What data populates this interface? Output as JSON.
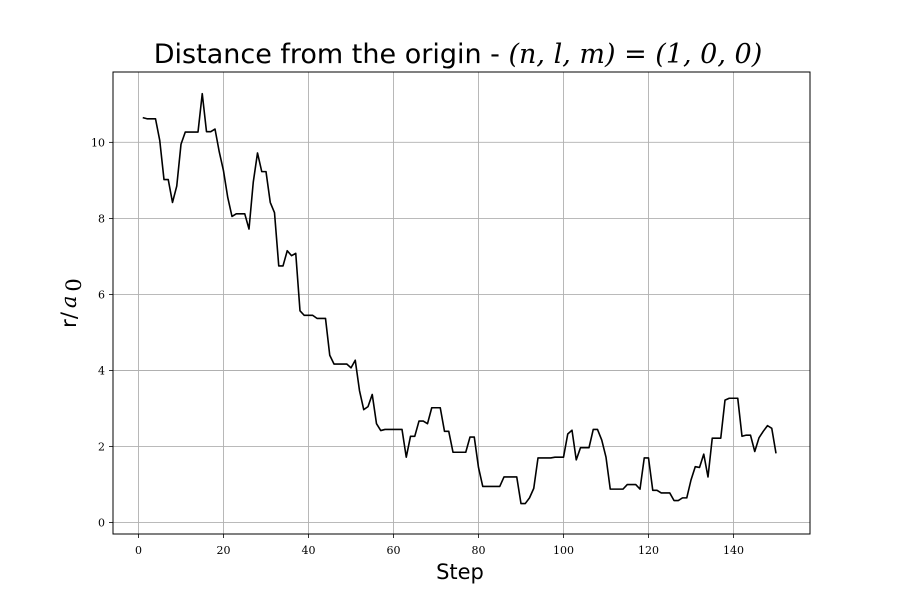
{
  "chart_data": {
    "type": "line",
    "title_text": "Distance from the origin - ",
    "title_math": "(n, l, m) = (1, 0, 0)",
    "xlabel": "Step",
    "ylabel_text": "r/",
    "ylabel_math": "a",
    "ylabel_subscript": "0",
    "xlim": [
      -6,
      158
    ],
    "ylim": [
      -0.3,
      11.85
    ],
    "xticks": [
      0,
      20,
      40,
      60,
      80,
      100,
      120,
      140
    ],
    "yticks": [
      0,
      2,
      4,
      6,
      8,
      10
    ],
    "xtick_labels": [
      "0",
      "20",
      "40",
      "60",
      "80",
      "100",
      "120",
      "140"
    ],
    "ytick_labels": [
      "0",
      "2",
      "4",
      "6",
      "8",
      "10"
    ],
    "grid": true,
    "line_color": "#000000",
    "series": [
      {
        "x": [
          1,
          2,
          3,
          4,
          5,
          6,
          7,
          8,
          9,
          10,
          11,
          12,
          13,
          14,
          15,
          16,
          17,
          18,
          19,
          20,
          21,
          22,
          23,
          24,
          25,
          26,
          27,
          28,
          29,
          30,
          31,
          32,
          33,
          34,
          35,
          36,
          37,
          38,
          39,
          40,
          41,
          42,
          43,
          44,
          45,
          46,
          47,
          48,
          49,
          50,
          51,
          52,
          53,
          54,
          55,
          56,
          57,
          58,
          59,
          60,
          61,
          62,
          63,
          64,
          65,
          66,
          67,
          68,
          69,
          70,
          71,
          72,
          73,
          74,
          75,
          76,
          77,
          78,
          79,
          80,
          81,
          82,
          83,
          84,
          85,
          86,
          87,
          88,
          89,
          90,
          91,
          92,
          93,
          94,
          95,
          96,
          97,
          98,
          99,
          100,
          101,
          102,
          103,
          104,
          105,
          106,
          107,
          108,
          109,
          110,
          111,
          112,
          113,
          114,
          115,
          116,
          117,
          118,
          119,
          120,
          121,
          122,
          123,
          124,
          125,
          126,
          127,
          128,
          129,
          130,
          131,
          132,
          133,
          134,
          135,
          136,
          137,
          138,
          139,
          140,
          141,
          142,
          143,
          144,
          145,
          146,
          147,
          148,
          149,
          150
        ],
        "values": [
          10.65,
          10.62,
          10.62,
          10.62,
          10.05,
          9.02,
          9.02,
          8.42,
          8.85,
          9.95,
          10.27,
          10.27,
          10.27,
          10.27,
          11.28,
          10.28,
          10.28,
          10.35,
          9.75,
          9.25,
          8.55,
          8.05,
          8.12,
          8.12,
          8.12,
          7.72,
          8.95,
          9.72,
          9.23,
          9.23,
          8.42,
          8.15,
          6.75,
          6.75,
          7.15,
          7.02,
          7.08,
          5.57,
          5.45,
          5.45,
          5.45,
          5.37,
          5.37,
          5.37,
          4.4,
          4.17,
          4.17,
          4.17,
          4.17,
          4.07,
          4.27,
          3.47,
          2.97,
          3.05,
          3.37,
          2.6,
          2.42,
          2.45,
          2.45,
          2.45,
          2.45,
          2.45,
          1.72,
          2.27,
          2.27,
          2.67,
          2.67,
          2.6,
          3.02,
          3.02,
          3.02,
          2.4,
          2.4,
          1.85,
          1.85,
          1.85,
          1.85,
          2.25,
          2.25,
          1.45,
          0.95,
          0.95,
          0.95,
          0.95,
          0.95,
          1.2,
          1.2,
          1.2,
          1.2,
          0.5,
          0.5,
          0.65,
          0.9,
          1.7,
          1.7,
          1.7,
          1.7,
          1.72,
          1.72,
          1.72,
          2.33,
          2.43,
          1.65,
          1.97,
          1.97,
          1.97,
          2.45,
          2.45,
          2.17,
          1.72,
          0.88,
          0.88,
          0.88,
          0.88,
          1.0,
          1.0,
          1.0,
          0.88,
          1.7,
          1.7,
          0.85,
          0.85,
          0.78,
          0.78,
          0.78,
          0.58,
          0.58,
          0.65,
          0.65,
          1.12,
          1.47,
          1.45,
          1.8,
          1.2,
          2.22,
          2.22,
          2.22,
          3.22,
          3.27,
          3.27,
          3.27,
          2.27,
          2.3,
          2.3,
          1.87,
          2.23,
          2.4,
          2.55,
          2.48,
          1.82
        ]
      }
    ]
  }
}
